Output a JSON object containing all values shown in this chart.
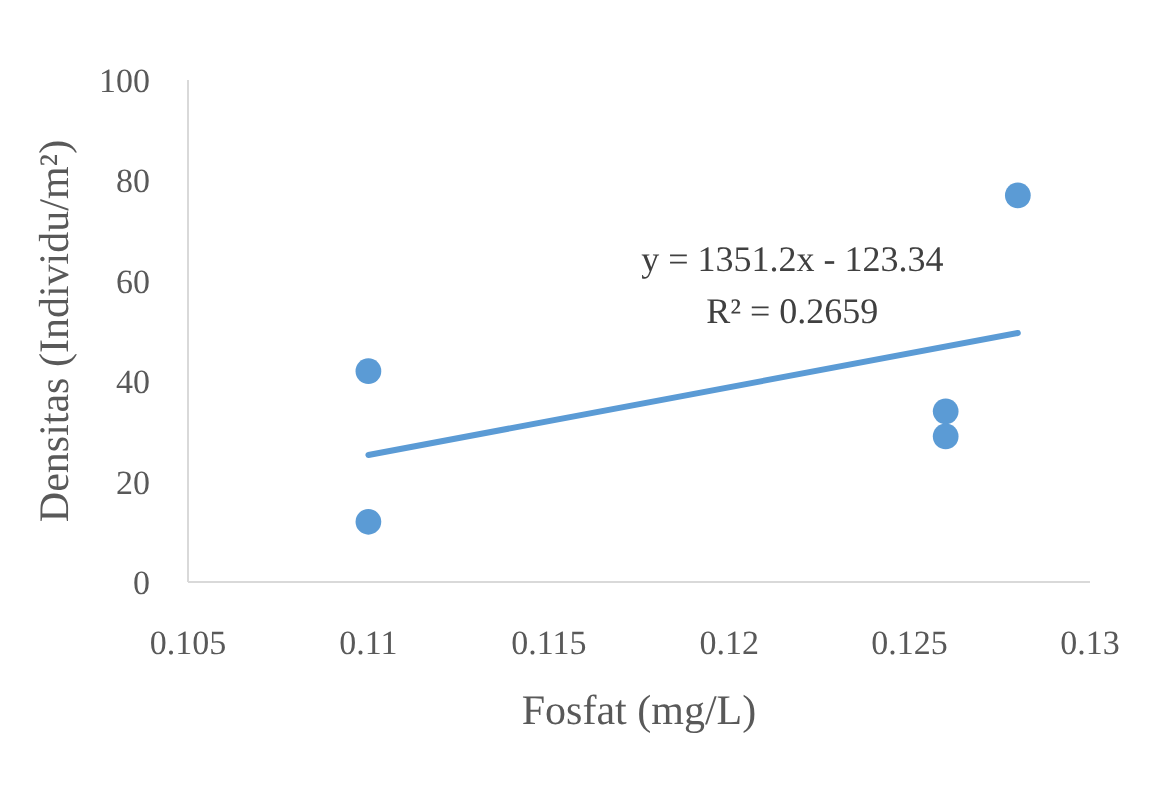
{
  "chart_data": {
    "type": "scatter",
    "xlabel": "Fosfat (mg/L)",
    "ylabel": "Densitas (Individu/m²)",
    "xlim": [
      0.105,
      0.13
    ],
    "xticks": [
      0.105,
      0.11,
      0.115,
      0.12,
      0.125,
      0.13
    ],
    "ylim": [
      0,
      100
    ],
    "yticks": [
      0,
      20,
      40,
      60,
      80,
      100
    ],
    "grid": false,
    "marker": "circle",
    "series": [
      {
        "color": "#5b9bd5",
        "x": [
          0.11,
          0.11,
          0.126,
          0.126,
          0.128
        ],
        "values": [
          42,
          12,
          34,
          29,
          77
        ]
      },
      {
        "type": "line",
        "color": "#5b9bd5",
        "x": [
          0.11,
          0.128
        ],
        "values": [
          25.3,
          49.6
        ],
        "marker": "none",
        "line_style": "solid"
      }
    ],
    "annotations": [
      "y = 1351.2x - 123.34",
      "R² = 0.2659"
    ]
  }
}
